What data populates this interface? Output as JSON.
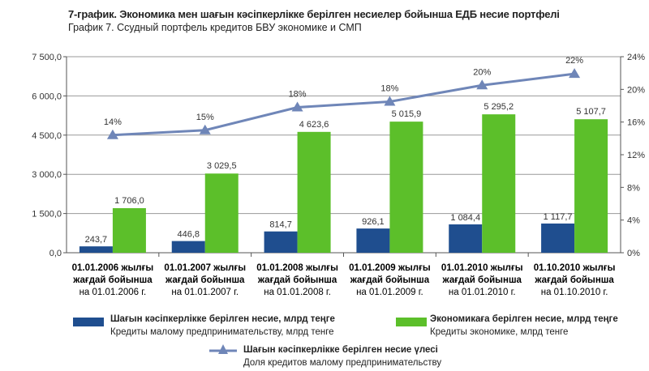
{
  "chart_data": {
    "type": "bar",
    "title": "7-график. Экономика мен шағын кәсіпкерлікке берілген несиелер бойынша ЕДБ несие портфелі",
    "subtitle": "График 7. Ссудный портфель кредитов БВУ экономике и СМП",
    "categories": [
      {
        "kz": "01.01.2006 жылғы",
        "kz2": "жағдай бойынша",
        "ru": "на 01.01.2006 г."
      },
      {
        "kz": "01.01.2007 жылғы",
        "kz2": "жағдай бойынша",
        "ru": "на 01.01.2007 г."
      },
      {
        "kz": "01.01.2008 жылғы",
        "kz2": "жағдай бойынша",
        "ru": "на 01.01.2008 г."
      },
      {
        "kz": "01.01.2009 жылғы",
        "kz2": "жағдай бойынша",
        "ru": "на 01.01.2009 г."
      },
      {
        "kz": "01.01.2010 жылғы",
        "kz2": "жағдай бойынша",
        "ru": "на 01.01.2010 г."
      },
      {
        "kz": "01.10.2010 жылғы",
        "kz2": "жағдай бойынша",
        "ru": "на 01.10.2010 г."
      }
    ],
    "series": [
      {
        "name": "Шағын кәсіпкерлікке берілген несие, млрд теңге",
        "name_ru": "Кредиты малому предпринимательству, млрд тенге",
        "type": "bar",
        "color": "#1f4e8f",
        "values": [
          243.7,
          446.8,
          814.7,
          926.1,
          1084.4,
          1117.7
        ],
        "labels": [
          "243,7",
          "446,8",
          "814,7",
          "926,1",
          "1 084,4",
          "1 117,7"
        ]
      },
      {
        "name": "Экономикаға берілген несие, млрд теңге",
        "name_ru": "Кредиты экономике, млрд тенге",
        "type": "bar",
        "color": "#5cbf2a",
        "values": [
          1706.0,
          3029.5,
          4623.6,
          5015.9,
          5295.2,
          5107.7
        ],
        "labels": [
          "1 706,0",
          "3 029,5",
          "4 623,6",
          "5 015,9",
          "5 295,2",
          "5 107,7"
        ]
      },
      {
        "name": "Шағын кәсіпкерлікке берілген несие үлесі",
        "name_ru": "Доля кредитов малому предпринимательству",
        "type": "line",
        "axis": "right",
        "color": "#6f86b8",
        "values": [
          14.4,
          15.0,
          17.8,
          18.5,
          20.5,
          21.9
        ],
        "labels": [
          "14%",
          "15%",
          "18%",
          "18%",
          "20%",
          "22%"
        ]
      }
    ],
    "ylim": [
      0,
      7500
    ],
    "yticks": [
      "0,0",
      "1 500,0",
      "3 000,0",
      "4 500,0",
      "6 000,0",
      "7 500,0"
    ],
    "y2lim": [
      0,
      24
    ],
    "y2ticks": [
      "0%",
      "4%",
      "8%",
      "12%",
      "16%",
      "20%",
      "24%"
    ],
    "grid": true,
    "legend": "bottom"
  }
}
